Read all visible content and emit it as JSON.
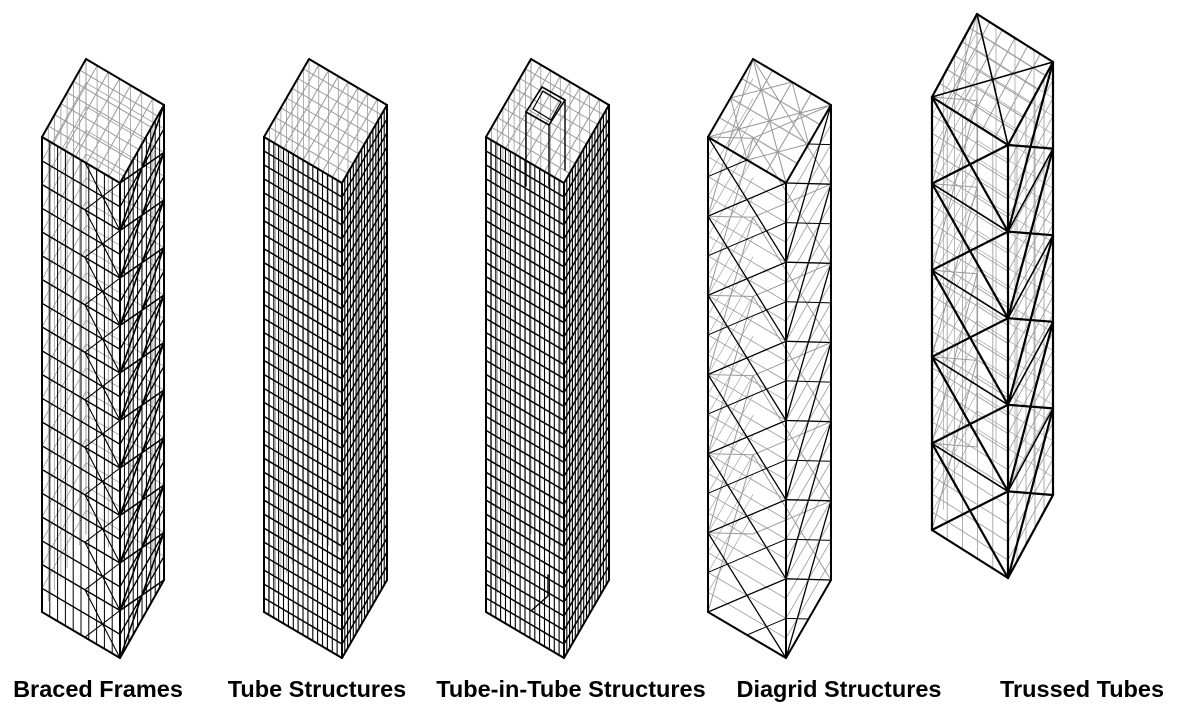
{
  "figure": {
    "towers": [
      {
        "id": "braced-frames",
        "label": "Braced Frames"
      },
      {
        "id": "tube-structures",
        "label": "Tube Structures"
      },
      {
        "id": "tube-in-tube-structures",
        "label": "Tube-in-Tube Structures"
      },
      {
        "id": "diagrid-structures",
        "label": "Diagrid Structures"
      },
      {
        "id": "trussed-tubes",
        "label": "Trussed Tubes"
      }
    ]
  },
  "colors": {
    "main_line": "#000000",
    "hidden_line": "#9a9a9a",
    "background": "#ffffff"
  }
}
